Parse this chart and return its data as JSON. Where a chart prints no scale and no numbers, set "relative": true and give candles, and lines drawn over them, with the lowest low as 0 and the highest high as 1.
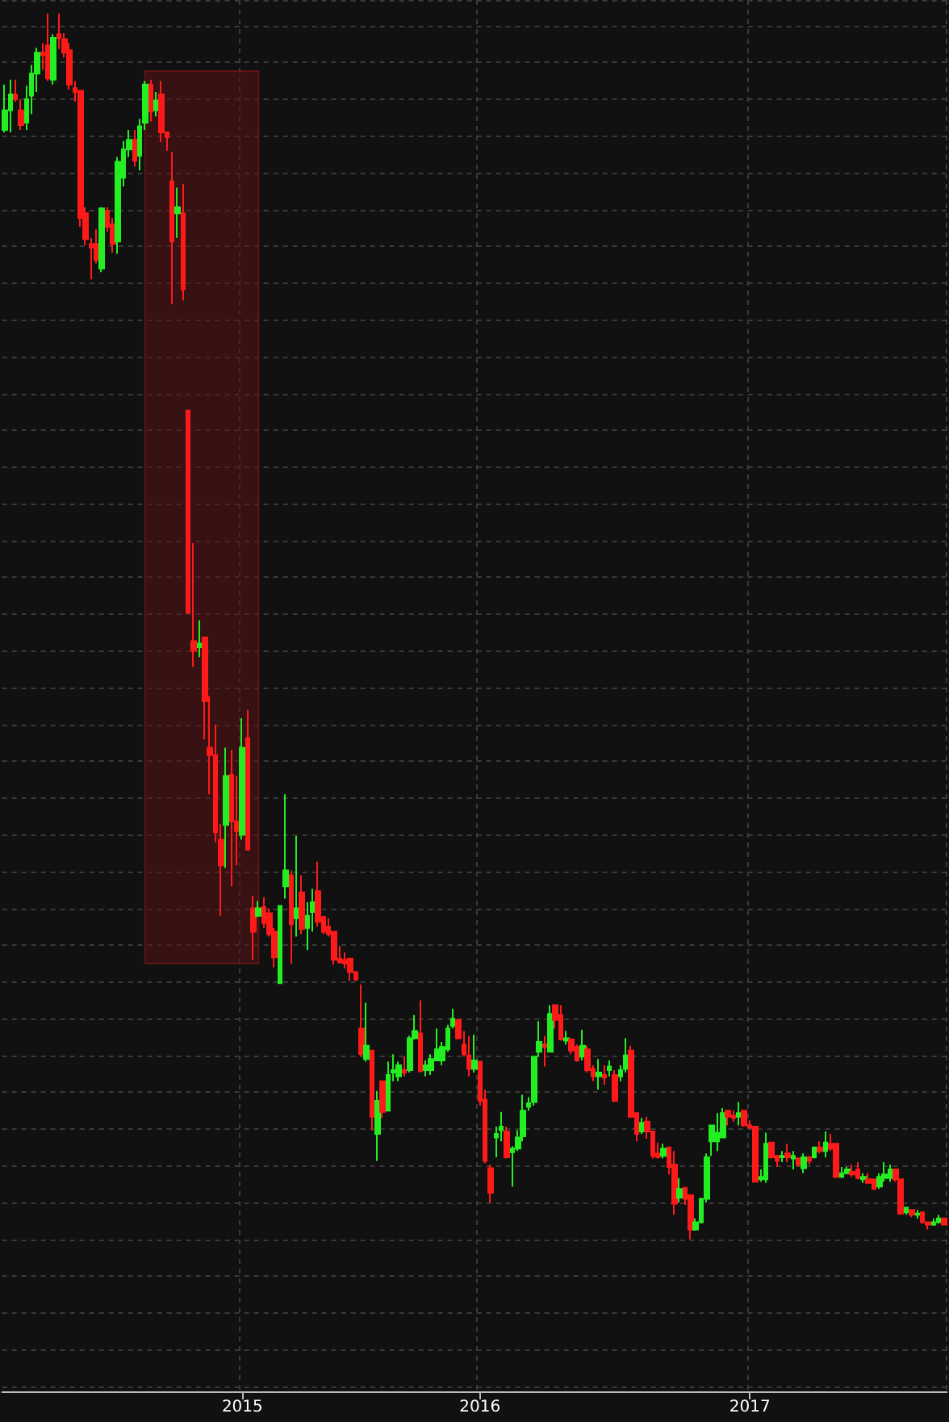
{
  "chart_data": {
    "type": "candlestick",
    "relative": true,
    "grid": true,
    "categories": [
      null,
      null,
      null,
      null,
      null,
      null,
      null,
      null,
      null,
      null,
      null,
      null,
      null,
      null,
      null,
      null,
      null,
      null,
      null,
      null,
      null,
      null,
      null,
      null,
      null,
      null,
      null,
      null,
      null,
      null,
      null,
      null,
      null,
      null,
      null,
      null,
      null,
      null,
      null,
      null,
      null,
      null,
      null,
      null,
      "2015",
      null,
      null,
      null,
      null,
      null,
      null,
      null,
      null,
      null,
      null,
      null,
      null,
      null,
      null,
      null,
      null,
      null,
      null,
      null,
      null,
      null,
      null,
      null,
      null,
      null,
      null,
      null,
      null,
      null,
      null,
      null,
      null,
      null,
      null,
      null,
      null,
      null,
      null,
      null,
      null,
      null,
      null,
      null,
      "2016",
      null,
      null,
      null,
      null,
      null,
      null,
      null,
      null,
      null,
      null,
      null,
      null,
      null,
      null,
      null,
      null,
      null,
      null,
      null,
      null,
      null,
      null,
      null,
      null,
      null,
      null,
      null,
      null,
      null,
      null,
      null,
      null,
      null,
      null,
      null,
      null,
      null,
      null,
      null,
      null,
      null,
      null,
      null,
      null,
      null,
      null,
      null,
      null,
      null,
      "2017",
      null,
      null,
      null,
      null,
      null,
      null,
      null,
      null,
      null,
      null,
      null,
      null,
      null,
      null,
      null,
      null,
      null,
      null,
      null,
      null,
      null,
      null,
      null,
      null,
      null,
      null,
      null,
      null,
      null,
      null,
      null,
      null,
      null,
      null,
      null,
      null
    ],
    "ohlc": [
      [
        0.905,
        0.942,
        0.903,
        0.921
      ],
      [
        0.921,
        0.946,
        0.903,
        0.934
      ],
      [
        0.934,
        0.946,
        0.928,
        0.93
      ],
      [
        0.921,
        0.93,
        0.905,
        0.909
      ],
      [
        0.911,
        0.941,
        0.905,
        0.93
      ],
      [
        0.933,
        0.958,
        0.918,
        0.951
      ],
      [
        0.951,
        0.972,
        0.936,
        0.968
      ],
      [
        0.968,
        0.976,
        0.954,
        0.966
      ],
      [
        0.974,
        1,
        0.945,
        0.947
      ],
      [
        0.946,
        0.983,
        0.942,
        0.98
      ],
      [
        0.983,
        1,
        0.971,
        0.98
      ],
      [
        0.979,
        0.984,
        0.964,
        0.968
      ],
      [
        0.97,
        0.976,
        0.938,
        0.942
      ],
      [
        0.939,
        0.945,
        0.928,
        0.936
      ],
      [
        0.937,
        0.937,
        0.826,
        0.833
      ],
      [
        0.837,
        0.842,
        0.811,
        0.816
      ],
      [
        0.812,
        0.817,
        0.783,
        0.809
      ],
      [
        0.812,
        0.824,
        0.796,
        0.799
      ],
      [
        0.792,
        0.842,
        0.789,
        0.841
      ],
      [
        0.839,
        0.842,
        0.822,
        0.826
      ],
      [
        0.828,
        0.833,
        0.805,
        0.812
      ],
      [
        0.814,
        0.883,
        0.804,
        0.879
      ],
      [
        0.866,
        0.896,
        0.859,
        0.889
      ],
      [
        0.889,
        0.905,
        0.883,
        0.897
      ],
      [
        0.897,
        0.905,
        0.875,
        0.88
      ],
      [
        0.884,
        0.914,
        0.872,
        0.908
      ],
      [
        0.911,
        0.945,
        0.905,
        0.942
      ],
      [
        0.942,
        0.946,
        0.912,
        0.92
      ],
      [
        0.921,
        0.936,
        0.916,
        0.929
      ],
      [
        0.934,
        0.945,
        0.895,
        0.903
      ],
      [
        0.903,
        0.903,
        0.888,
        0.899
      ],
      [
        0.863,
        0.887,
        0.763,
        0.814
      ],
      [
        0.837,
        0.858,
        0.817,
        0.842
      ],
      [
        0.837,
        0.861,
        0.766,
        0.775
      ],
      [
        0.676,
        0.676,
        0.511,
        0.511
      ],
      [
        0.488,
        0.568,
        0.467,
        0.48
      ],
      [
        0.483,
        0.505,
        0.475,
        0.486
      ],
      [
        0.491,
        0.491,
        0.408,
        0.439
      ],
      [
        0.401,
        0.443,
        0.363,
        0.395
      ],
      [
        0.395,
        0.42,
        0.324,
        0.332
      ],
      [
        0.326,
        0.339,
        0.264,
        0.305
      ],
      [
        0.338,
        0.401,
        0.303,
        0.378
      ],
      [
        0.379,
        0.399,
        0.288,
        0.341
      ],
      [
        0.341,
        0.378,
        0.305,
        0.333
      ],
      [
        0.33,
        0.425,
        0.326,
        0.401
      ],
      [
        0.409,
        0.432,
        0.318,
        0.318
      ],
      [
        0.27,
        0.28,
        0.228,
        0.251
      ],
      [
        0.264,
        0.276,
        0.263,
        0.27
      ],
      [
        0.271,
        0.279,
        0.254,
        0.258
      ],
      [
        0.266,
        0.27,
        0.247,
        0.249
      ],
      [
        0.251,
        0.254,
        0.222,
        0.23
      ],
      [
        0.209,
        0.272,
        0.209,
        0.272
      ],
      [
        0.288,
        0.363,
        0.278,
        0.301
      ],
      [
        0.297,
        0.301,
        0.225,
        0.257
      ],
      [
        0.262,
        0.329,
        0.247,
        0.27
      ],
      [
        0.283,
        0.297,
        0.249,
        0.253
      ],
      [
        0.254,
        0.275,
        0.236,
        0.264
      ],
      [
        0.267,
        0.286,
        0.251,
        0.275
      ],
      [
        0.284,
        0.308,
        0.255,
        0.259
      ],
      [
        0.263,
        0.264,
        0.249,
        0.251
      ],
      [
        0.255,
        0.262,
        0.247,
        0.249
      ],
      [
        0.251,
        0.251,
        0.224,
        0.228
      ],
      [
        0.229,
        0.239,
        0.225,
        0.226
      ],
      [
        0.228,
        0.234,
        0.221,
        0.225
      ],
      [
        0.229,
        0.229,
        0.211,
        0.218
      ],
      [
        0.218,
        0.218,
        0.211,
        0.212
      ],
      [
        0.172,
        0.208,
        0.149,
        0.151
      ],
      [
        0.147,
        0.193,
        0.145,
        0.158
      ],
      [
        0.154,
        0.154,
        0.089,
        0.1
      ],
      [
        0.086,
        0.121,
        0.064,
        0.113
      ],
      [
        0.129,
        0.129,
        0.099,
        0.104
      ],
      [
        0.105,
        0.145,
        0.105,
        0.134
      ],
      [
        0.136,
        0.151,
        0.129,
        0.138
      ],
      [
        0.133,
        0.145,
        0.129,
        0.142
      ],
      [
        0.138,
        0.149,
        0.133,
        0.136
      ],
      [
        0.138,
        0.166,
        0.136,
        0.164
      ],
      [
        0.164,
        0.183,
        0.163,
        0.17
      ],
      [
        0.168,
        0.195,
        0.137,
        0.137
      ],
      [
        0.138,
        0.146,
        0.133,
        0.142
      ],
      [
        0.138,
        0.151,
        0.134,
        0.147
      ],
      [
        0.146,
        0.172,
        0.146,
        0.155
      ],
      [
        0.146,
        0.161,
        0.142,
        0.157
      ],
      [
        0.155,
        0.175,
        0.153,
        0.172
      ],
      [
        0.174,
        0.188,
        0.172,
        0.18
      ],
      [
        0.179,
        0.179,
        0.163,
        0.164
      ],
      [
        0.159,
        0.17,
        0.149,
        0.151
      ],
      [
        0.15,
        0.166,
        0.133,
        0.139
      ],
      [
        0.139,
        0.167,
        0.136,
        0.146
      ],
      [
        0.145,
        0.145,
        0.109,
        0.113
      ],
      [
        0.114,
        0.122,
        0.062,
        0.064
      ],
      [
        0.058,
        0.061,
        0.03,
        0.038
      ],
      [
        0.083,
        0.092,
        0.067,
        0.086
      ],
      [
        0.089,
        0.104,
        0.08,
        0.092
      ],
      [
        0.088,
        0.092,
        0.066,
        0.067
      ],
      [
        0.071,
        0.076,
        0.043,
        0.074
      ],
      [
        0.074,
        0.089,
        0.072,
        0.083
      ],
      [
        0.084,
        0.118,
        0.08,
        0.105
      ],
      [
        0.108,
        0.116,
        0.105,
        0.111
      ],
      [
        0.112,
        0.149,
        0.109,
        0.149
      ],
      [
        0.153,
        0.178,
        0.149,
        0.161
      ],
      [
        0.159,
        0.166,
        0.141,
        0.157
      ],
      [
        0.153,
        0.191,
        0.153,
        0.184
      ],
      [
        0.191,
        0.191,
        0.172,
        0.179
      ],
      [
        0.183,
        0.191,
        0.162,
        0.163
      ],
      [
        0.162,
        0.17,
        0.159,
        0.164
      ],
      [
        0.163,
        0.164,
        0.151,
        0.154
      ],
      [
        0.157,
        0.159,
        0.145,
        0.146
      ],
      [
        0.149,
        0.171,
        0.146,
        0.158
      ],
      [
        0.155,
        0.158,
        0.136,
        0.138
      ],
      [
        0.139,
        0.142,
        0.129,
        0.133
      ],
      [
        0.133,
        0.147,
        0.122,
        0.136
      ],
      [
        0.134,
        0.142,
        0.126,
        0.132
      ],
      [
        0.138,
        0.146,
        0.133,
        0.141
      ],
      [
        0.134,
        0.138,
        0.112,
        0.113
      ],
      [
        0.133,
        0.142,
        0.129,
        0.138
      ],
      [
        0.139,
        0.164,
        0.136,
        0.15
      ],
      [
        0.154,
        0.158,
        0.099,
        0.1
      ],
      [
        0.103,
        0.103,
        0.08,
        0.086
      ],
      [
        0.088,
        0.099,
        0.086,
        0.095
      ],
      [
        0.096,
        0.1,
        0.082,
        0.088
      ],
      [
        0.088,
        0.088,
        0.066,
        0.068
      ],
      [
        0.07,
        0.079,
        0.066,
        0.067
      ],
      [
        0.068,
        0.078,
        0.066,
        0.074
      ],
      [
        0.075,
        0.075,
        0.053,
        0.059
      ],
      [
        0.061,
        0.072,
        0.02,
        0.029
      ],
      [
        0.034,
        0.05,
        0.03,
        0.041
      ],
      [
        0.042,
        0.042,
        0.028,
        0.033
      ],
      [
        0.036,
        0.036,
        0,
        0.008
      ],
      [
        0.008,
        0.017,
        0.007,
        0.014
      ],
      [
        0.014,
        0.034,
        0.013,
        0.033
      ],
      [
        0.033,
        0.07,
        0.03,
        0.067
      ],
      [
        0.08,
        0.093,
        0.068,
        0.093
      ],
      [
        0.08,
        0.103,
        0.072,
        0.087
      ],
      [
        0.083,
        0.107,
        0.083,
        0.103
      ],
      [
        0.105,
        0.105,
        0.093,
        0.1
      ],
      [
        0.101,
        0.105,
        0.096,
        0.099
      ],
      [
        0.1,
        0.112,
        0.093,
        0.103
      ],
      [
        0.105,
        0.105,
        0.092,
        0.093
      ],
      [
        0.093,
        0.097,
        0.091,
        0.091
      ],
      [
        0.092,
        0.092,
        0.047,
        0.047
      ],
      [
        0.049,
        0.057,
        0.047,
        0.051
      ],
      [
        0.049,
        0.087,
        0.046,
        0.078
      ],
      [
        0.079,
        0.079,
        0.066,
        0.067
      ],
      [
        0.068,
        0.068,
        0.059,
        0.064
      ],
      [
        0.067,
        0.072,
        0.063,
        0.068
      ],
      [
        0.07,
        0.078,
        0.063,
        0.067
      ],
      [
        0.066,
        0.072,
        0.057,
        0.068
      ],
      [
        0.066,
        0.067,
        0.059,
        0.061
      ],
      [
        0.058,
        0.07,
        0.054,
        0.067
      ],
      [
        0.067,
        0.068,
        0.061,
        0.064
      ],
      [
        0.067,
        0.075,
        0.066,
        0.075
      ],
      [
        0.075,
        0.08,
        0.07,
        0.072
      ],
      [
        0.072,
        0.088,
        0.067,
        0.079
      ],
      [
        0.078,
        0.086,
        0.072,
        0.074
      ],
      [
        0.078,
        0.078,
        0.05,
        0.051
      ],
      [
        0.051,
        0.059,
        0.05,
        0.054
      ],
      [
        0.054,
        0.059,
        0.053,
        0.057
      ],
      [
        0.055,
        0.061,
        0.051,
        0.053
      ],
      [
        0.057,
        0.063,
        0.049,
        0.05
      ],
      [
        0.049,
        0.054,
        0.046,
        0.051
      ],
      [
        0.049,
        0.054,
        0.046,
        0.046
      ],
      [
        0.049,
        0.049,
        0.041,
        0.041
      ],
      [
        0.043,
        0.054,
        0.041,
        0.051
      ],
      [
        0.05,
        0.063,
        0.047,
        0.053
      ],
      [
        0.05,
        0.061,
        0.047,
        0.057
      ],
      [
        0.057,
        0.057,
        0.047,
        0.049
      ],
      [
        0.049,
        0.049,
        0.02,
        0.021
      ],
      [
        0.022,
        0.026,
        0.02,
        0.026
      ],
      [
        0.024,
        0.024,
        0.018,
        0.02
      ],
      [
        0.02,
        0.024,
        0.017,
        0.021
      ],
      [
        0.022,
        0.022,
        0.013,
        0.014
      ],
      [
        0.014,
        0.014,
        0.008,
        0.012
      ],
      [
        0.012,
        0.017,
        0.011,
        0.014
      ],
      [
        0.014,
        0.02,
        0.013,
        0.017
      ],
      [
        0.017,
        0.017,
        0.012,
        0.012
      ]
    ],
    "colors": [
      "#22ee22",
      "#22ee22",
      "#ff1a1a",
      "#ff1a1a",
      "#22ee22",
      "#22ee22",
      "#22ee22",
      "#ff1a1a",
      "#ff1a1a",
      "#22ee22",
      "#ff1a1a",
      "#ff1a1a",
      "#ff1a1a",
      "#ff1a1a",
      "#ff1a1a",
      "#ff1a1a",
      "#ff1a1a",
      "#ff1a1a",
      "#22ee22",
      "#ff1a1a",
      "#ff1a1a",
      "#22ee22",
      "#22ee22",
      "#22ee22",
      "#ff1a1a",
      "#22ee22",
      "#22ee22",
      "#ff1a1a",
      "#22ee22",
      "#ff1a1a",
      "#ff1a1a",
      "#ff1a1a",
      "#22ee22",
      "#ff1a1a",
      "#ff1a1a",
      "#ff1a1a",
      "#22ee22",
      "#ff1a1a",
      "#ff1a1a",
      "#ff1a1a",
      "#ff1a1a",
      "#22ee22",
      "#ff1a1a",
      "#ff1a1a",
      "#22ee22",
      "#ff1a1a",
      "#ff1a1a",
      "#22ee22",
      "#ff1a1a",
      "#ff1a1a",
      "#ff1a1a",
      "#22ee22",
      "#22ee22",
      "#ff1a1a",
      "#22ee22",
      "#ff1a1a",
      "#22ee22",
      "#22ee22",
      "#ff1a1a",
      "#ff1a1a",
      "#ff1a1a",
      "#ff1a1a",
      "#ff1a1a",
      "#ff1a1a",
      "#ff1a1a",
      "#ff1a1a",
      "#ff1a1a",
      "#22ee22",
      "#ff1a1a",
      "#22ee22",
      "#ff1a1a",
      "#22ee22",
      "#22ee22",
      "#22ee22",
      "#ff1a1a",
      "#22ee22",
      "#22ee22",
      "#ff1a1a",
      "#22ee22",
      "#22ee22",
      "#22ee22",
      "#22ee22",
      "#22ee22",
      "#22ee22",
      "#ff1a1a",
      "#ff1a1a",
      "#ff1a1a",
      "#22ee22",
      "#ff1a1a",
      "#ff1a1a",
      "#ff1a1a",
      "#22ee22",
      "#22ee22",
      "#ff1a1a",
      "#22ee22",
      "#22ee22",
      "#22ee22",
      "#22ee22",
      "#22ee22",
      "#22ee22",
      "#ff1a1a",
      "#22ee22",
      "#ff1a1a",
      "#ff1a1a",
      "#22ee22",
      "#ff1a1a",
      "#ff1a1a",
      "#22ee22",
      "#ff1a1a",
      "#ff1a1a",
      "#22ee22",
      "#ff1a1a",
      "#22ee22",
      "#ff1a1a",
      "#22ee22",
      "#22ee22",
      "#ff1a1a",
      "#ff1a1a",
      "#22ee22",
      "#ff1a1a",
      "#ff1a1a",
      "#ff1a1a",
      "#22ee22",
      "#ff1a1a",
      "#ff1a1a",
      "#22ee22",
      "#ff1a1a",
      "#ff1a1a",
      "#22ee22",
      "#22ee22",
      "#22ee22",
      "#22ee22",
      "#22ee22",
      "#22ee22",
      "#ff1a1a",
      "#ff1a1a",
      "#22ee22",
      "#ff1a1a",
      "#ff1a1a",
      "#ff1a1a",
      "#22ee22",
      "#22ee22",
      "#ff1a1a",
      "#ff1a1a",
      "#22ee22",
      "#ff1a1a",
      "#22ee22",
      "#ff1a1a",
      "#22ee22",
      "#ff1a1a",
      "#22ee22",
      "#ff1a1a",
      "#22ee22",
      "#ff1a1a",
      "#ff1a1a",
      "#22ee22",
      "#22ee22",
      "#ff1a1a",
      "#ff1a1a",
      "#22ee22",
      "#ff1a1a",
      "#ff1a1a",
      "#22ee22",
      "#22ee22",
      "#22ee22",
      "#ff1a1a",
      "#ff1a1a",
      "#22ee22",
      "#ff1a1a",
      "#22ee22",
      "#ff1a1a",
      "#ff1a1a",
      "#22ee22",
      "#22ee22",
      "#ff1a1a"
    ]
  }
}
